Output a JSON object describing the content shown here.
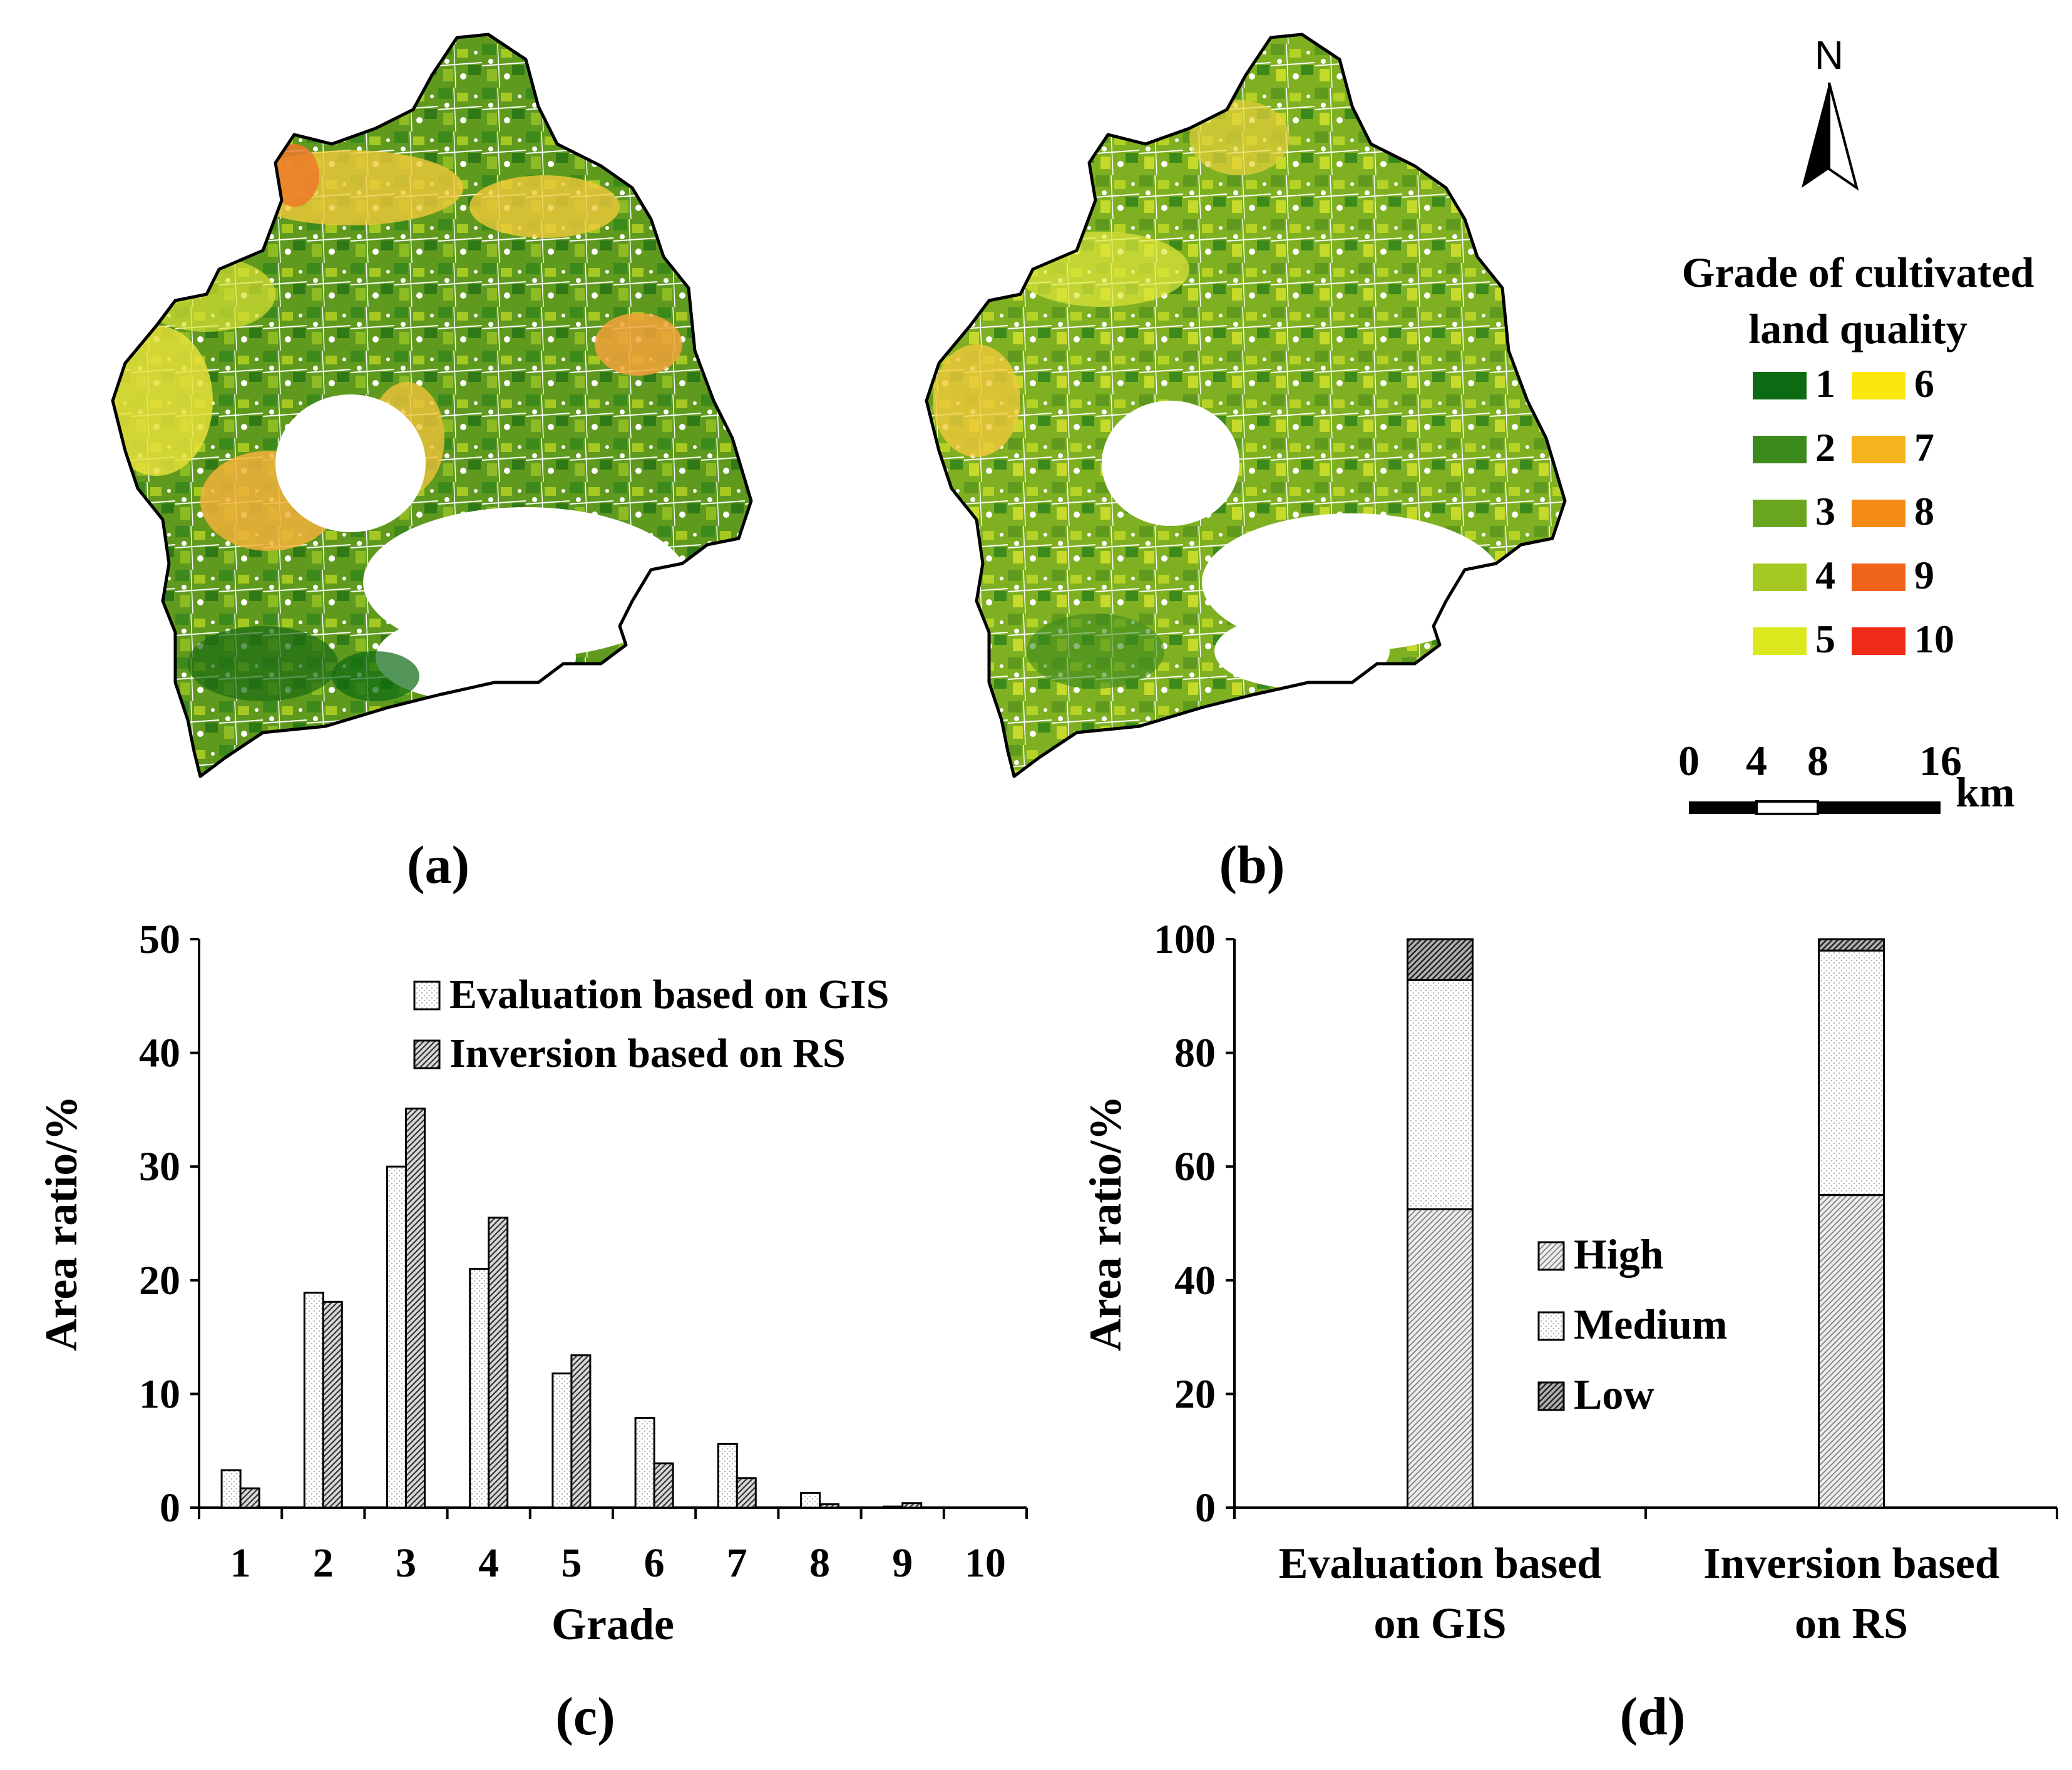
{
  "panels": {
    "a_label": "(a)",
    "b_label": "(b)",
    "c_label": "(c)",
    "d_label": "(d)"
  },
  "map_legend": {
    "title_line1": "Grade of cultivated",
    "title_line2": "land quality",
    "entries": [
      {
        "grade": "1",
        "color": "#0b6a12"
      },
      {
        "grade": "2",
        "color": "#3d8a1c"
      },
      {
        "grade": "3",
        "color": "#6aa51e"
      },
      {
        "grade": "4",
        "color": "#a6c823"
      },
      {
        "grade": "5",
        "color": "#dde91f"
      },
      {
        "grade": "6",
        "color": "#fbe70c"
      },
      {
        "grade": "7",
        "color": "#f5b31e"
      },
      {
        "grade": "8",
        "color": "#f48b15"
      },
      {
        "grade": "9",
        "color": "#f0631a"
      },
      {
        "grade": "10",
        "color": "#ee2b17"
      }
    ]
  },
  "north_arrow": {
    "label": "N"
  },
  "scale_bar": {
    "ticks": [
      "0",
      "4",
      "8",
      "16"
    ],
    "unit": "km"
  },
  "chart_data": [
    {
      "type": "bar",
      "panel": "(c)",
      "categories": [
        "1",
        "2",
        "3",
        "4",
        "5",
        "6",
        "7",
        "8",
        "9",
        "10"
      ],
      "series": [
        {
          "name": "Evaluation based on GIS",
          "values": [
            3.3,
            18.9,
            30.0,
            21.0,
            11.8,
            7.9,
            5.6,
            1.3,
            0.1,
            0.0
          ]
        },
        {
          "name": "Inversion based on RS",
          "values": [
            1.7,
            18.1,
            35.1,
            25.5,
            13.4,
            3.9,
            2.6,
            0.3,
            0.4,
            0.0
          ]
        }
      ],
      "xlabel": "Grade",
      "ylabel": "Area ratio/%",
      "ylim": [
        0,
        50
      ],
      "yticks": [
        0,
        10,
        20,
        30,
        40,
        50
      ],
      "legend": "top-right"
    },
    {
      "type": "bar",
      "stacked": true,
      "panel": "(d)",
      "categories": [
        "Evaluation based on GIS",
        "Inversion based on RS"
      ],
      "category_lines": [
        [
          "Evaluation based",
          "on GIS"
        ],
        [
          "Inversion based",
          "on RS"
        ]
      ],
      "series": [
        {
          "name": "High",
          "values": [
            52.5,
            55.0
          ]
        },
        {
          "name": "Medium",
          "values": [
            40.3,
            43.0
          ]
        },
        {
          "name": "Low",
          "values": [
            7.2,
            2.0
          ]
        }
      ],
      "legend_order": [
        "High",
        "Medium",
        "Low"
      ],
      "ylabel": "Area ratio/%",
      "ylim": [
        0,
        100
      ],
      "yticks": [
        0,
        20,
        40,
        60,
        80,
        100
      ],
      "legend": "center"
    }
  ]
}
